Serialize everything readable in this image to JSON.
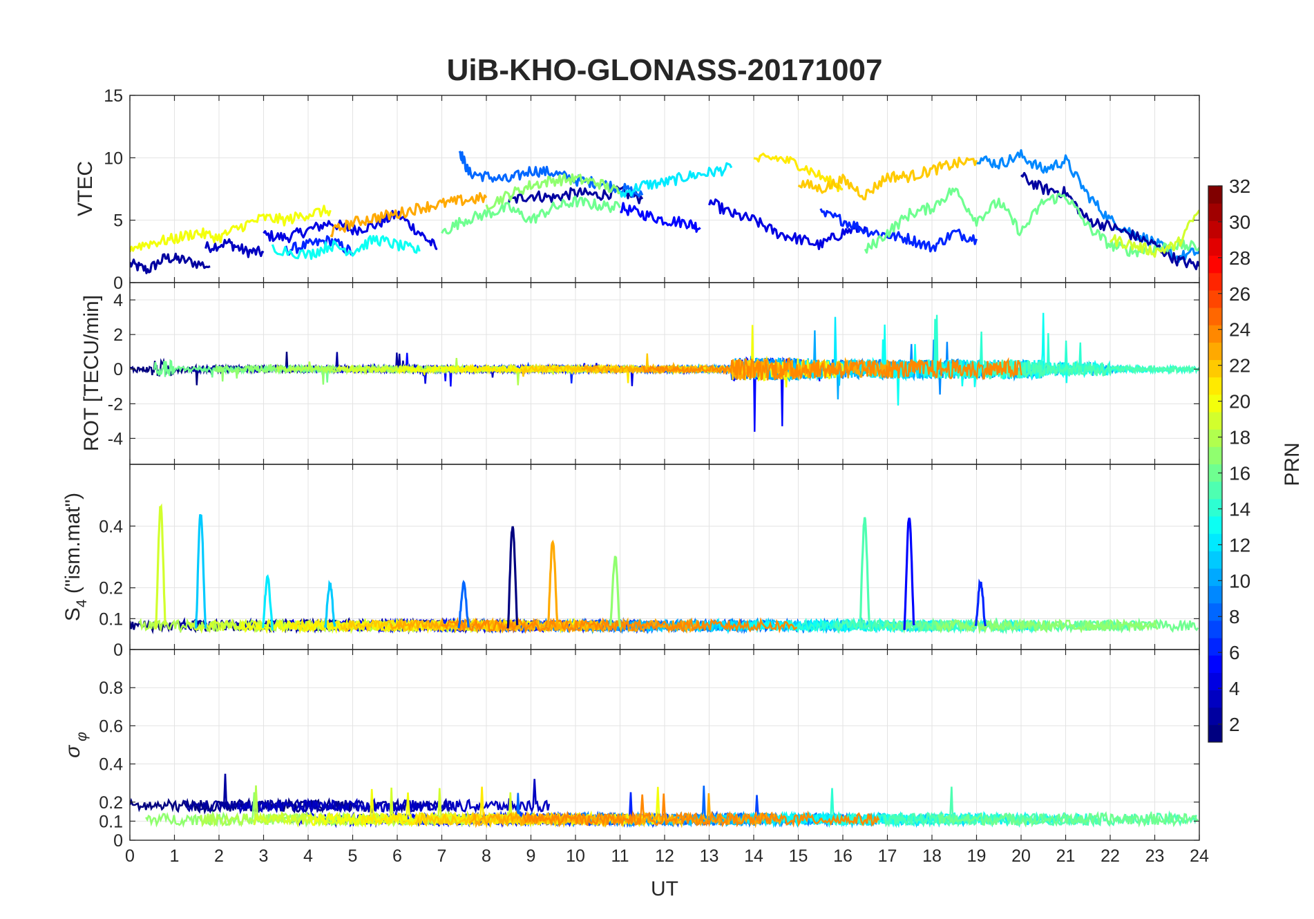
{
  "chart_data": {
    "type": "line",
    "title": "UiB-KHO-GLONASS-20171007",
    "xlabel": "UT",
    "xlim": [
      0,
      24
    ],
    "x_ticks": [
      "0",
      "1",
      "2",
      "3",
      "4",
      "5",
      "6",
      "7",
      "8",
      "9",
      "10",
      "11",
      "12",
      "13",
      "14",
      "15",
      "16",
      "17",
      "18",
      "19",
      "20",
      "21",
      "22",
      "23",
      "24"
    ],
    "grid": true,
    "colorbar": {
      "label": "PRN",
      "colormap": "jet",
      "range": [
        1,
        32
      ],
      "ticks": [
        "2",
        "4",
        "6",
        "8",
        "10",
        "12",
        "14",
        "16",
        "18",
        "20",
        "22",
        "24",
        "26",
        "28",
        "30",
        "32"
      ],
      "placement": "right"
    },
    "panels": [
      {
        "ylabel": "VTEC",
        "ylim": [
          0,
          15
        ],
        "y_ticks": [
          "0",
          "5",
          "10",
          "15"
        ],
        "series": [
          {
            "prn": 2,
            "x": [
              0,
              0.4,
              0.8,
              1.2,
              1.8
            ],
            "values": [
              1.5,
              1.0,
              2.0,
              1.8,
              1.3
            ]
          },
          {
            "prn": 3,
            "x": [
              1.7,
              2.2,
              2.6,
              3.0
            ],
            "values": [
              2.8,
              3.2,
              2.5,
              2.4
            ]
          },
          {
            "prn": 4,
            "x": [
              3.0,
              3.5,
              4.0,
              4.5,
              5.0,
              5.5,
              6.0,
              6.5,
              6.9
            ],
            "values": [
              3.8,
              3.6,
              4.2,
              4.8,
              4.2,
              4.6,
              5.5,
              4.0,
              2.7
            ]
          },
          {
            "prn": 6,
            "x": [
              3.5,
              4.0,
              4.5,
              5.0
            ],
            "values": [
              2.6,
              3.0,
              3.4,
              2.4
            ]
          },
          {
            "prn": 2,
            "x": [
              8.5,
              9.0,
              9.5,
              10.0,
              10.5,
              11.0,
              11.5
            ],
            "values": [
              6.5,
              7.0,
              6.8,
              7.2,
              7.0,
              7.3,
              6.7
            ]
          },
          {
            "prn": 5,
            "x": [
              11.0,
              11.5,
              12.0,
              12.5,
              12.8
            ],
            "values": [
              6.0,
              5.5,
              5.0,
              4.8,
              4.4
            ]
          },
          {
            "prn": 8,
            "x": [
              7.4,
              7.6,
              8.0,
              8.5,
              9.0,
              9.5,
              10.0,
              10.5,
              11.0,
              11.5
            ],
            "values": [
              10.6,
              8.8,
              8.5,
              8.2,
              9.0,
              8.8,
              8.2,
              8.0,
              7.6,
              7.0
            ]
          },
          {
            "prn": 12,
            "x": [
              11.0,
              11.5,
              12.0,
              12.5,
              13.0,
              13.5
            ],
            "values": [
              7.0,
              7.8,
              8.0,
              8.5,
              8.8,
              9.2
            ]
          },
          {
            "prn": 4,
            "x": [
              13.0,
              13.5,
              14.0,
              14.5,
              15.0,
              15.5,
              16.0,
              16.5
            ],
            "values": [
              6.5,
              5.5,
              5.0,
              4.0,
              3.5,
              3.0,
              4.0,
              4.5
            ]
          },
          {
            "prn": 6,
            "x": [
              15.5,
              16.0,
              16.5,
              17.0,
              17.5,
              18.0,
              18.5,
              19.0
            ],
            "values": [
              5.5,
              5.0,
              4.2,
              3.8,
              3.5,
              2.8,
              4.0,
              3.5
            ]
          },
          {
            "prn": 9,
            "x": [
              19.0,
              19.5,
              20.0,
              20.5,
              21.0,
              21.5,
              22.0,
              22.5,
              23.0,
              23.5,
              24.0
            ],
            "values": [
              10.0,
              9.5,
              10.2,
              9.0,
              9.8,
              7.0,
              5.0,
              4.0,
              3.2,
              2.0,
              2.5
            ]
          },
          {
            "prn": 2,
            "x": [
              20.0,
              20.5,
              21.0,
              21.5,
              22.0,
              22.5,
              23.0,
              23.5,
              24.0
            ],
            "values": [
              8.5,
              7.5,
              7.2,
              5.0,
              4.5,
              3.8,
              3.0,
              1.8,
              1.3
            ]
          },
          {
            "prn": 16,
            "x": [
              7.0,
              7.5,
              8.0,
              8.5,
              9.0,
              9.5,
              10.0,
              10.5,
              11.0
            ],
            "values": [
              4.0,
              5.0,
              5.5,
              6.0,
              5.0,
              6.0,
              6.5,
              6.2,
              6.0
            ]
          },
          {
            "prn": 17,
            "x": [
              8.0,
              8.5,
              9.0,
              9.5,
              10.0,
              10.5,
              11.0
            ],
            "values": [
              6.2,
              7.0,
              7.8,
              8.2,
              8.3,
              8.0,
              7.2
            ]
          },
          {
            "prn": 13,
            "x": [
              3.2,
              4.0,
              4.5,
              5.0,
              5.5,
              6.0,
              6.5
            ],
            "values": [
              2.8,
              2.2,
              3.0,
              2.5,
              3.5,
              3.0,
              2.5
            ]
          },
          {
            "prn": 20,
            "x": [
              0,
              0.5,
              1.0,
              1.5,
              2.0,
              2.5,
              3.0,
              3.5,
              4.0,
              4.5
            ],
            "values": [
              2.8,
              3.2,
              3.5,
              4.0,
              3.6,
              4.5,
              5.2,
              5.0,
              5.5,
              5.8
            ]
          },
          {
            "prn": 21,
            "x": [
              14.0,
              14.5,
              15.0,
              15.5,
              16.0
            ],
            "values": [
              9.8,
              10.0,
              9.5,
              8.5,
              7.5
            ]
          },
          {
            "prn": 22,
            "x": [
              15.0,
              15.5,
              16.0,
              16.5,
              17.0,
              17.5,
              18.0,
              18.5,
              19.0
            ],
            "values": [
              8.0,
              7.5,
              8.2,
              7.0,
              8.5,
              8.5,
              9.0,
              9.5,
              9.8
            ]
          },
          {
            "prn": 23,
            "x": [
              4.5,
              5.0,
              5.5,
              6.0,
              6.5,
              7.0,
              7.5,
              8.0
            ],
            "values": [
              4.0,
              4.8,
              5.2,
              5.5,
              6.0,
              6.3,
              6.6,
              6.8
            ]
          },
          {
            "prn": 16,
            "x": [
              16.5,
              17.0,
              17.5,
              18.0,
              18.5,
              19.0,
              19.5,
              20.0,
              20.5,
              21.0,
              21.5,
              22.0,
              22.5,
              23.0,
              23.5,
              24.0
            ],
            "values": [
              2.5,
              4.0,
              5.5,
              6.0,
              7.5,
              5.0,
              6.5,
              4.0,
              6.5,
              7.0,
              4.5,
              3.0,
              2.5,
              2.7,
              3.0,
              2.8
            ]
          },
          {
            "prn": 19,
            "x": [
              22.0,
              22.5,
              23.0,
              23.5,
              24.0
            ],
            "values": [
              3.5,
              3.0,
              2.5,
              3.0,
              5.8
            ]
          }
        ]
      },
      {
        "ylabel": "ROT [TECU/min]",
        "ylim": [
          -5.5,
          5
        ],
        "y_ticks": [
          "-4",
          "-2",
          "0",
          "2",
          "4"
        ]
      },
      {
        "ylabel": "S4 (\"ism.mat\")",
        "ylim": [
          0,
          0.6
        ],
        "y_ticks": [
          "0",
          "0.1",
          "0.2",
          "0.4"
        ],
        "spikes": [
          {
            "prn": 19,
            "x": 0.7,
            "peak": 0.46
          },
          {
            "prn": 11,
            "x": 1.6,
            "peak": 0.44
          },
          {
            "prn": 12,
            "x": 3.1,
            "peak": 0.23
          },
          {
            "prn": 11,
            "x": 4.5,
            "peak": 0.21
          },
          {
            "prn": 8,
            "x": 7.5,
            "peak": 0.21
          },
          {
            "prn": 1,
            "x": 8.6,
            "peak": 0.4
          },
          {
            "prn": 23,
            "x": 9.5,
            "peak": 0.35
          },
          {
            "prn": 17,
            "x": 10.9,
            "peak": 0.3
          },
          {
            "prn": 15,
            "x": 16.5,
            "peak": 0.42
          },
          {
            "prn": 5,
            "x": 17.5,
            "peak": 0.43
          },
          {
            "prn": 6,
            "x": 19.1,
            "peak": 0.22
          }
        ]
      },
      {
        "ylabel": "σ φ",
        "ylim": [
          0,
          1
        ],
        "y_ticks": [
          "0",
          "0.1",
          "0.2",
          "0.4",
          "0.6",
          "0.8"
        ]
      }
    ]
  }
}
